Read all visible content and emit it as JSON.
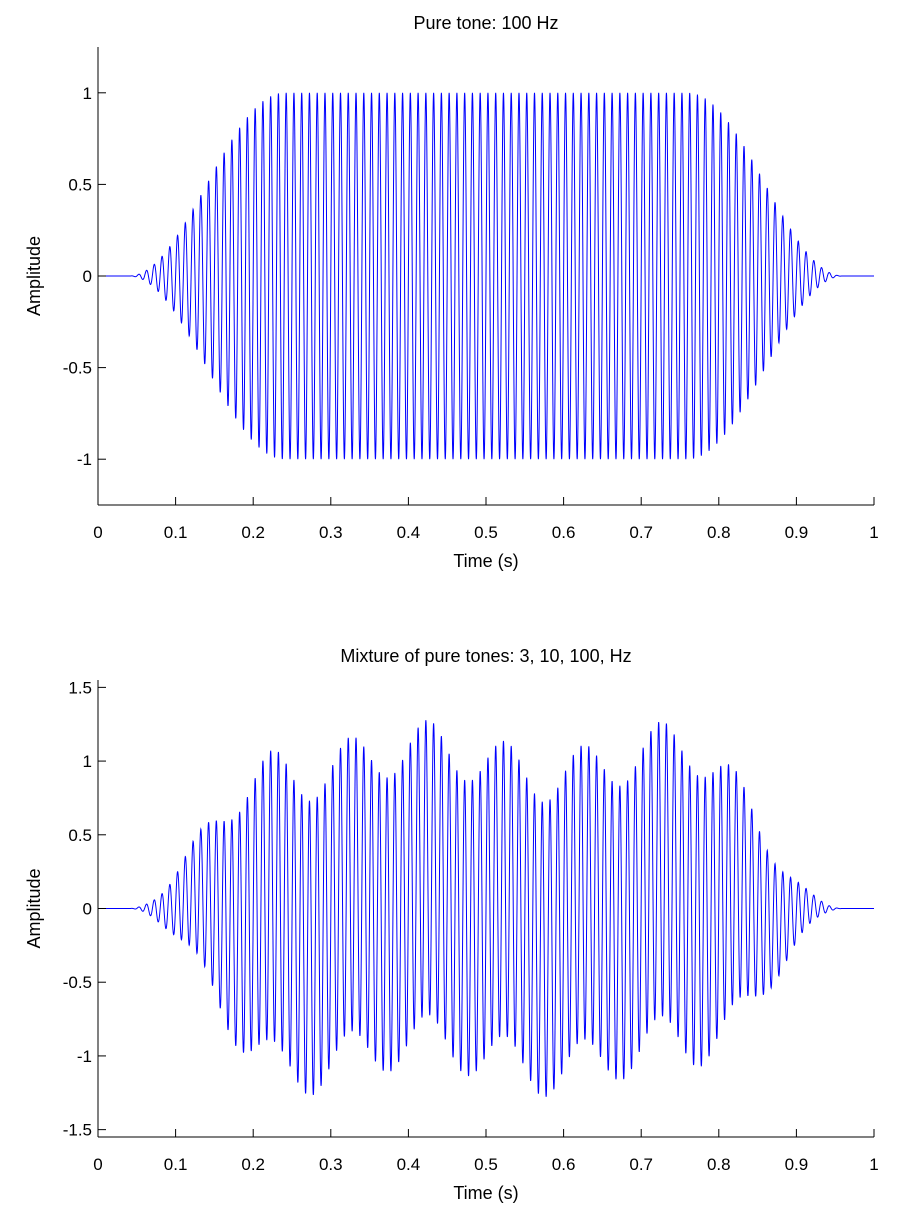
{
  "chart_data": [
    {
      "type": "line",
      "title": "Pure tone: 100 Hz",
      "xlabel": "Time (s)",
      "ylabel": "Amplitude",
      "xlim": [
        0,
        1
      ],
      "ylim": [
        -1.25,
        1.25
      ],
      "x_ticks": [
        0,
        0.1,
        0.2,
        0.3,
        0.4,
        0.5,
        0.6,
        0.7,
        0.8,
        0.9,
        1
      ],
      "x_tick_labels": [
        "0",
        "0.1",
        "0.2",
        "0.3",
        "0.4",
        "0.5",
        "0.6",
        "0.7",
        "0.8",
        "0.9",
        "1"
      ],
      "y_ticks": [
        -1,
        -0.5,
        0,
        0.5,
        1
      ],
      "y_tick_labels": [
        "-1",
        "-0.5",
        "0",
        "0.5",
        "1"
      ],
      "grid": false,
      "sample_rate": 4000,
      "series": [
        {
          "color": "#0000ff",
          "components": [
            {
              "freq": 100,
              "amp": 1
            }
          ],
          "envelope": {
            "onset": 0.04,
            "ramp": 0.2,
            "offset": 0.96
          }
        }
      ]
    },
    {
      "type": "line",
      "title": "Mixture of pure tones: 3, 10, 100,  Hz",
      "xlabel": "Time (s)",
      "ylabel": "Amplitude",
      "xlim": [
        0,
        1
      ],
      "ylim": [
        -1.55,
        1.55
      ],
      "x_ticks": [
        0,
        0.1,
        0.2,
        0.3,
        0.4,
        0.5,
        0.6,
        0.7,
        0.8,
        0.9,
        1
      ],
      "x_tick_labels": [
        "0",
        "0.1",
        "0.2",
        "0.3",
        "0.4",
        "0.5",
        "0.6",
        "0.7",
        "0.8",
        "0.9",
        "1"
      ],
      "y_ticks": [
        -1.5,
        -1,
        -0.5,
        0,
        0.5,
        1,
        1.5
      ],
      "y_tick_labels": [
        "-1.5",
        "-1",
        "-0.5",
        "0",
        "0.5",
        "1",
        "1.5"
      ],
      "grid": false,
      "sample_rate": 4000,
      "series": [
        {
          "color": "#0000ff",
          "components": [
            {
              "freq": 100,
              "amp": 1
            },
            {
              "freq": 10,
              "amp": 0.18
            },
            {
              "freq": 3,
              "amp": 0.1
            }
          ],
          "envelope": {
            "onset": 0.04,
            "ramp": 0.2,
            "offset": 0.96
          }
        }
      ]
    }
  ]
}
